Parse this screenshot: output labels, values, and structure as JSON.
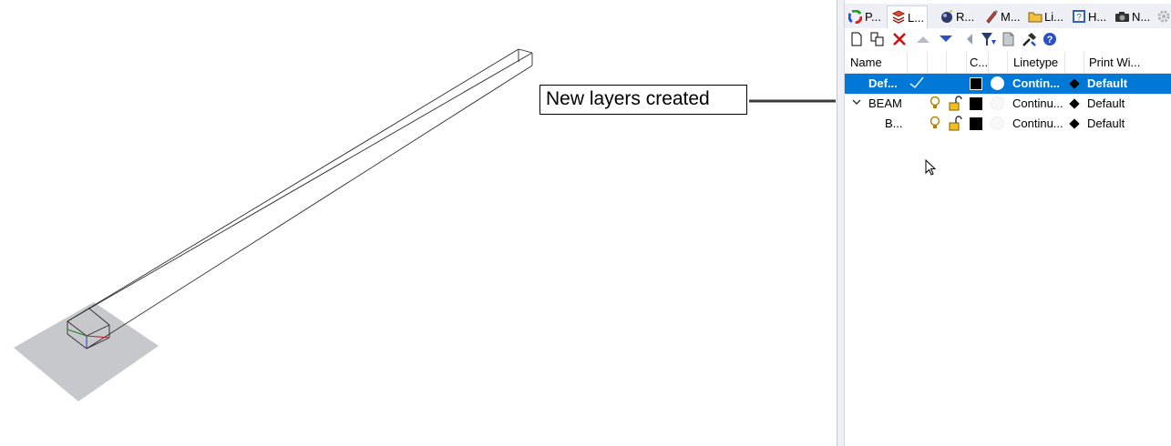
{
  "callout": {
    "text": "New layers created"
  },
  "panel": {
    "tabs": [
      {
        "label": "P...",
        "icon": "color-wheel-icon"
      },
      {
        "label": "L...",
        "icon": "layers-icon",
        "active": true
      },
      {
        "label": "R...",
        "icon": "render-icon"
      },
      {
        "label": "M...",
        "icon": "materials-icon"
      },
      {
        "label": "Li...",
        "icon": "folder-icon"
      },
      {
        "label": "H...",
        "icon": "help-icon"
      },
      {
        "label": "N...",
        "icon": "camera-icon"
      }
    ],
    "toolbar": [
      "new-layer-icon",
      "new-sublayer-icon",
      "delete-icon",
      "move-up-icon",
      "move-down-icon",
      "move-out-icon",
      "filter-icon",
      "document-icon",
      "tools-icon",
      "help-icon"
    ],
    "columns": {
      "name": "Name",
      "color": "C...",
      "linetype": "Linetype",
      "print_width": "Print Wi..."
    },
    "layers": [
      {
        "name": "Def...",
        "linetype": "Contin...",
        "print_width": "Default",
        "selected": true,
        "current": true
      },
      {
        "name": "BEAM",
        "linetype": "Continu...",
        "print_width": "Default",
        "expanded": true
      },
      {
        "name": "B...",
        "linetype": "Continu...",
        "print_width": "Default"
      }
    ]
  },
  "colors": {
    "selection": "#0078d7",
    "accent": "#c00000"
  }
}
